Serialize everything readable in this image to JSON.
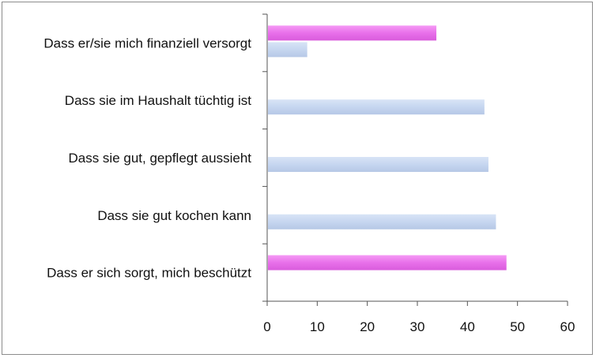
{
  "chart_data": {
    "type": "bar",
    "orientation": "horizontal",
    "categories": [
      "Dass er/sie mich finanziell versorgt",
      "Dass sie im Haushalt tüchtig ist",
      "Dass sie gut, gepflegt aussieht",
      "Dass sie gut kochen kann",
      "Dass er sich sorgt, mich beschützt"
    ],
    "series": [
      {
        "color": "#e870ea",
        "values": [
          33.8,
          null,
          null,
          null,
          47.8
        ]
      },
      {
        "color": "#c6d6f0",
        "values": [
          8.0,
          43.4,
          44.2,
          45.7,
          null
        ]
      }
    ],
    "xlim": [
      0,
      60
    ],
    "xticks": [
      "0",
      "10",
      "20",
      "30",
      "40",
      "50",
      "60"
    ],
    "title": "",
    "xlabel": "",
    "ylabel": "",
    "grid": false,
    "legend": "none"
  }
}
